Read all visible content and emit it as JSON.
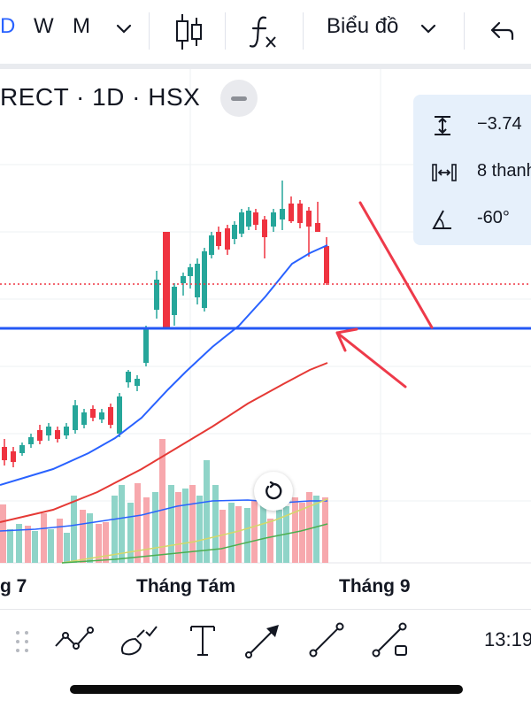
{
  "toolbar": {
    "interval_d_partial": "D",
    "interval_w": "W",
    "interval_m": "M",
    "chart_type_label": "Biểu đồ"
  },
  "chart": {
    "symbol_line": "RECT · 1D · HSX",
    "x_axis_labels": [
      "g 7",
      "Tháng Tám",
      "Tháng 9"
    ],
    "colors": {
      "up": "#26a69a",
      "down": "#ef3340",
      "volume_up": "#8fd4c8",
      "volume_down": "#f7a8ad",
      "ma_blue": "#2962ff",
      "ma_red": "#e53935",
      "ma_yellow": "#d4d86a",
      "ma_green": "#4caf50",
      "support_line": "#2458f5",
      "last_price_line": "#ef3340",
      "arrow": "#ee3a4a"
    }
  },
  "measure_tooltip": {
    "price_change": "−3.74",
    "bars": "8 thanh",
    "angle": "-60°"
  },
  "bottom": {
    "time": "13:19"
  },
  "icons": {
    "top": [
      "chevron-down-icon",
      "candlestick-icon",
      "indicators-fx-icon",
      "undo-icon"
    ],
    "drawing_tools": [
      "drag-handle-icon",
      "trend-path-icon",
      "brush-icon",
      "text-icon",
      "arrow-line-icon",
      "line-icon",
      "ray-icon"
    ]
  }
}
